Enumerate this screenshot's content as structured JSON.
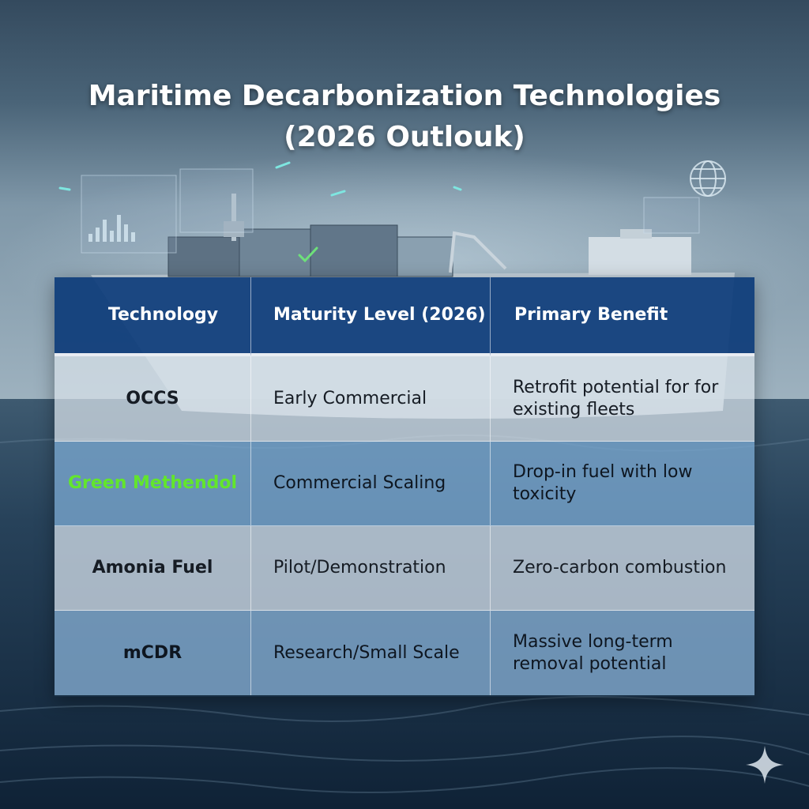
{
  "title": {
    "line1": "Maritime Decarbonization Technologies",
    "line2": "(2026 Outlouk)"
  },
  "table": {
    "headers": [
      "Technology",
      "Maturity Level (2026)",
      "Primary Benefit"
    ],
    "rows": [
      {
        "technology": "OCCS",
        "maturity": "Early Commercial",
        "benefit": "Retrofit potential for for existing fleets"
      },
      {
        "technology": "Green Methendol",
        "maturity": "Commercial Scaling",
        "benefit": "Drop-in fuel with low toxicity"
      },
      {
        "technology": "Amonia Fuel",
        "maturity": "Pilot/Demonstration",
        "benefit": "Zero-carbon combustion"
      },
      {
        "technology": "mCDR",
        "maturity": "Research/Small Scale",
        "benefit": "Massive long-term removal potential"
      }
    ]
  },
  "colors": {
    "header_bg": "#0e3c7a",
    "highlight_text": "#62e62c",
    "title_text": "#ffffff"
  },
  "icons": [
    "globe-icon",
    "sparkle-icon",
    "bar-chart-icon",
    "check-icon"
  ]
}
